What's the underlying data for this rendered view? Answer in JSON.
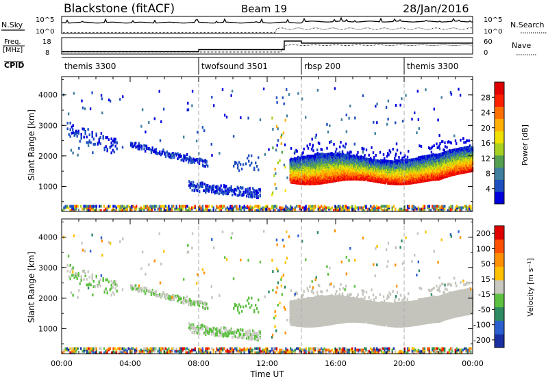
{
  "header": {
    "station": "Blackstone (fitACF)",
    "beam": "Beam 19",
    "date": "28/Jan/2016"
  },
  "left_labels": {
    "nsky": "N.Sky",
    "freq": "Freq.",
    "freq_unit": "[MHz]",
    "cpid": "CPID"
  },
  "right_labels": {
    "nsearch": "N.Search",
    "nave": "Nave"
  },
  "noise_ticks": {
    "left_top": "10^5",
    "left_bottom": "10^0",
    "right_top": "10^5",
    "right_bottom": "10^0"
  },
  "freq_ticks": {
    "left_top": "18",
    "left_bottom": "8",
    "right_top": "60",
    "right_bottom": "0"
  },
  "cpid_segments": [
    {
      "label": "themis 3300",
      "start": 0,
      "end": 8
    },
    {
      "label": "twofsound 3501",
      "start": 8,
      "end": 14
    },
    {
      "label": "rbsp 200",
      "start": 14,
      "end": 20
    },
    {
      "label": "themis 3300",
      "start": 20,
      "end": 24
    }
  ],
  "chart_data": [
    {
      "type": "heatmap",
      "name": "power",
      "ylabel": "Slant Range [km]",
      "ylim": [
        180,
        4600
      ],
      "yticks": [
        1000,
        2000,
        3000,
        4000
      ],
      "colorbar_label": "Power [dB]",
      "colorbar_ticks": [
        "4",
        "8",
        "12",
        "16",
        "20",
        "24",
        "28"
      ],
      "colormap": [
        "#0000dd",
        "#1e4fc0",
        "#3f7f9f",
        "#55a050",
        "#a8d020",
        "#f0e000",
        "#ffb000",
        "#ff7000",
        "#ff2000",
        "#e00000"
      ],
      "clim": [
        0,
        30
      ]
    },
    {
      "type": "heatmap",
      "name": "velocity",
      "ylabel": "Slant Range [km]",
      "xlabel": "Time UT",
      "ylim": [
        180,
        4600
      ],
      "yticks": [
        1000,
        2000,
        3000,
        4000
      ],
      "xticks": [
        "00:00",
        "04:00",
        "08:00",
        "12:00",
        "16:00",
        "20:00",
        "00:00"
      ],
      "xlim_hours": [
        0,
        24
      ],
      "colorbar_label": "Velocity [m s⁻¹]",
      "colorbar_ticks": [
        "200",
        "100",
        "50",
        "15",
        "-15",
        "-50",
        "-100",
        "-200"
      ],
      "colormap": [
        "#1a2fa0",
        "#2c5fd0",
        "#2e8a60",
        "#5cc040",
        "#c8c8c0",
        "#ffc000",
        "#ff9000",
        "#ff5000",
        "#e00000"
      ]
    }
  ],
  "colors": {
    "ground_scatter": "#c4c4bc"
  }
}
